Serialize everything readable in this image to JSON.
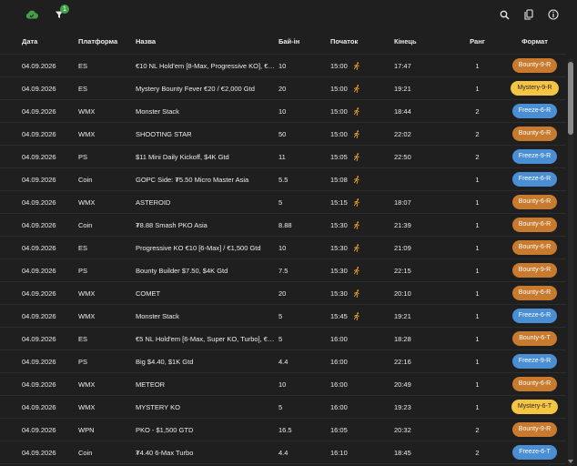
{
  "toolbar": {
    "cloud_icon": "cloud-check-icon",
    "filter_icon": "filter-icon",
    "filter_badge": "1",
    "search_icon": "search-icon",
    "copy_icon": "copy-icon",
    "info_icon": "info-icon"
  },
  "colors": {
    "background": "#1f1f1f",
    "cloud": "#43a047",
    "badge": "#43a047",
    "pill_orange": "#c87a2e",
    "pill_yellow": "#f6c443",
    "pill_blue": "#4a8fd4",
    "running_icon": "#e29a2f"
  },
  "columns": {
    "date": "Дата",
    "platform": "Платформа",
    "name": "Назва",
    "buyin": "Бай-ін",
    "start": "Початок",
    "end": "Кінець",
    "rank": "Ранг",
    "format": "Формат"
  },
  "rows": [
    {
      "date": "04.09.2026",
      "platform": "ES",
      "name": "€10 NL Hold'em [8-Max, Progressive KO], €2...",
      "buyin": "10",
      "start": "15:00",
      "running": true,
      "end": "17:47",
      "rank": "1",
      "format": "Bounty-9-R",
      "color": "orange"
    },
    {
      "date": "04.09.2026",
      "platform": "ES",
      "name": "Mystery Bounty Fever €20 / €2,000 Gtd",
      "buyin": "20",
      "start": "15:00",
      "running": true,
      "end": "19:21",
      "rank": "1",
      "format": "Mystery-9-R",
      "color": "yellow"
    },
    {
      "date": "04.09.2026",
      "platform": "WMX",
      "name": "Monster Stack",
      "buyin": "10",
      "start": "15:00",
      "running": true,
      "end": "18:44",
      "rank": "2",
      "format": "Freeze-6-R",
      "color": "blue"
    },
    {
      "date": "04.09.2026",
      "platform": "WMX",
      "name": "SHOOTING STAR",
      "buyin": "50",
      "start": "15:00",
      "running": true,
      "end": "22:02",
      "rank": "2",
      "format": "Bounty-6-R",
      "color": "orange"
    },
    {
      "date": "04.09.2026",
      "platform": "PS",
      "name": "$11 Mini Daily Kickoff, $4K Gtd",
      "buyin": "11",
      "start": "15:05",
      "running": true,
      "end": "22:50",
      "rank": "2",
      "format": "Freeze-9-R",
      "color": "blue"
    },
    {
      "date": "04.09.2026",
      "platform": "Coin",
      "name": "GOPC Side: ₮5.50 Micro Master Asia",
      "buyin": "5.5",
      "start": "15:08",
      "running": true,
      "end": "",
      "rank": "1",
      "format": "Freeze-6-R",
      "color": "blue"
    },
    {
      "date": "04.09.2026",
      "platform": "WMX",
      "name": "ASTEROID",
      "buyin": "5",
      "start": "15:15",
      "running": true,
      "end": "18:07",
      "rank": "1",
      "format": "Bounty-6-R",
      "color": "orange"
    },
    {
      "date": "04.09.2026",
      "platform": "Coin",
      "name": "₮8.88 Smash PKO Asia",
      "buyin": "8.88",
      "start": "15:30",
      "running": true,
      "end": "21:39",
      "rank": "1",
      "format": "Bounty-6-R",
      "color": "orange"
    },
    {
      "date": "04.09.2026",
      "platform": "ES",
      "name": "Progressive KO €10 [6-Max] / €1,500 Gtd",
      "buyin": "10",
      "start": "15:30",
      "running": true,
      "end": "21:09",
      "rank": "1",
      "format": "Bounty-6-R",
      "color": "orange"
    },
    {
      "date": "04.09.2026",
      "platform": "PS",
      "name": "Bounty Builder $7.50, $4K Gtd",
      "buyin": "7.5",
      "start": "15:30",
      "running": true,
      "end": "22:15",
      "rank": "1",
      "format": "Bounty-9-R",
      "color": "orange"
    },
    {
      "date": "04.09.2026",
      "platform": "WMX",
      "name": "COMET",
      "buyin": "20",
      "start": "15:30",
      "running": true,
      "end": "20:10",
      "rank": "1",
      "format": "Bounty-6-R",
      "color": "orange"
    },
    {
      "date": "04.09.2026",
      "platform": "WMX",
      "name": "Monster Stack",
      "buyin": "5",
      "start": "15:45",
      "running": true,
      "end": "19:21",
      "rank": "1",
      "format": "Freeze-6-R",
      "color": "blue"
    },
    {
      "date": "04.09.2026",
      "platform": "ES",
      "name": "€5 NL Hold'em [6-Max, Super KO, Turbo], €3...",
      "buyin": "5",
      "start": "16:00",
      "running": false,
      "end": "18:28",
      "rank": "1",
      "format": "Bounty-6-T",
      "color": "orange"
    },
    {
      "date": "04.09.2026",
      "platform": "PS",
      "name": "Big $4.40, $1K Gtd",
      "buyin": "4.4",
      "start": "16:00",
      "running": false,
      "end": "22:16",
      "rank": "1",
      "format": "Freeze-9-R",
      "color": "blue"
    },
    {
      "date": "04.09.2026",
      "platform": "WMX",
      "name": "METEOR",
      "buyin": "10",
      "start": "16:00",
      "running": false,
      "end": "20:49",
      "rank": "1",
      "format": "Bounty-6-R",
      "color": "orange"
    },
    {
      "date": "04.09.2026",
      "platform": "WMX",
      "name": "MYSTERY KO",
      "buyin": "5",
      "start": "16:00",
      "running": false,
      "end": "19:23",
      "rank": "1",
      "format": "Mystery-6-T",
      "color": "yellow"
    },
    {
      "date": "04.09.2026",
      "platform": "WPN",
      "name": "PKO - $1,500 GTD",
      "buyin": "16.5",
      "start": "16:05",
      "running": false,
      "end": "20:32",
      "rank": "2",
      "format": "Bounty-9-R",
      "color": "orange"
    },
    {
      "date": "04.09.2026",
      "platform": "Coin",
      "name": "₮4.40 6-Max Turbo",
      "buyin": "4.4",
      "start": "16:10",
      "running": false,
      "end": "18:45",
      "rank": "2",
      "format": "Freeze-6-T",
      "color": "blue"
    }
  ]
}
